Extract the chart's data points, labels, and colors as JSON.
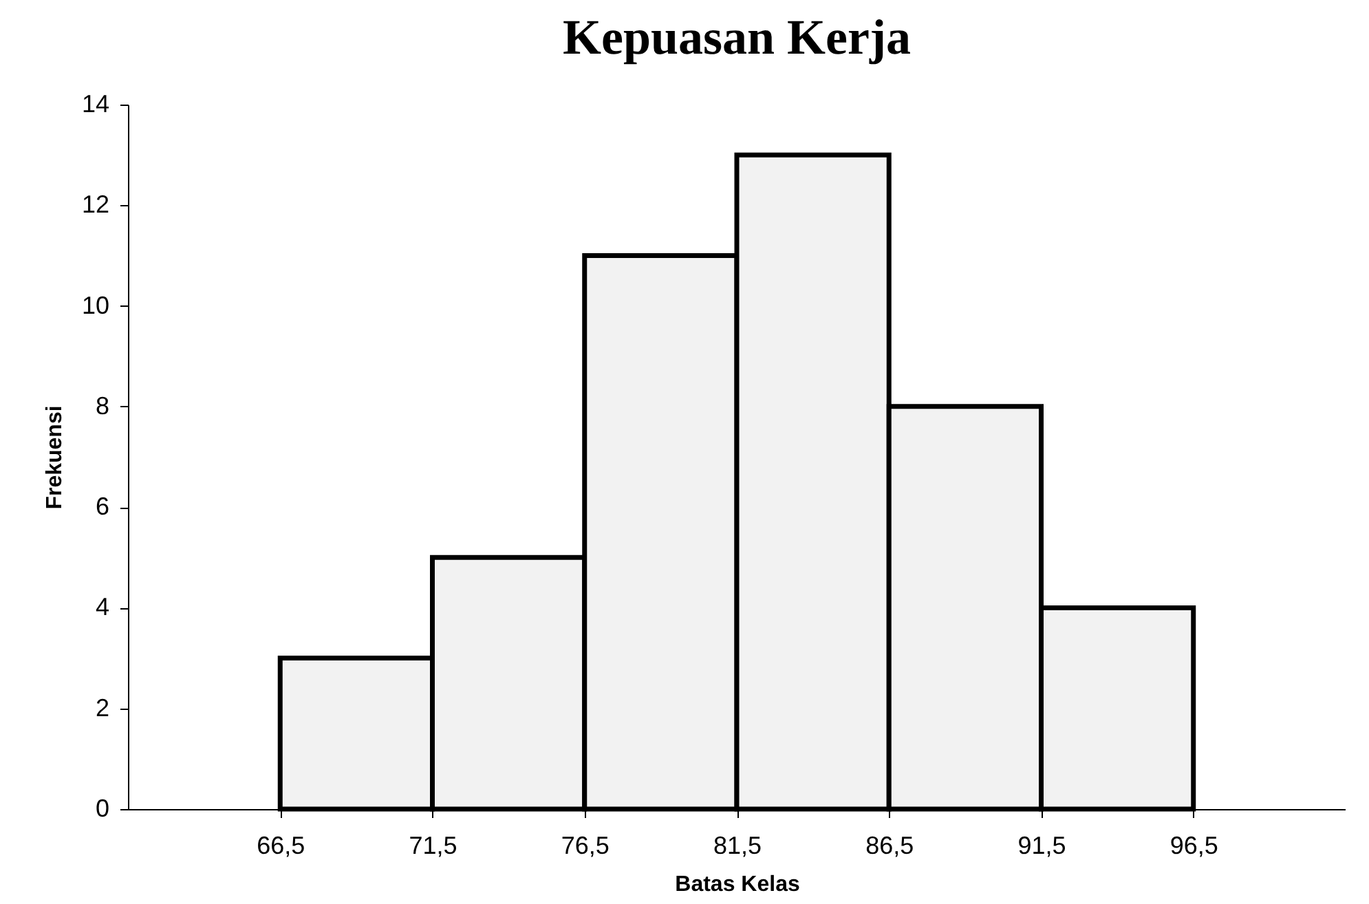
{
  "chart_data": {
    "type": "histogram",
    "title": "Kepuasan Kerja",
    "xlabel": "Batas Kelas",
    "ylabel": "Frekuensi",
    "bins": [
      66.5,
      71.5,
      76.5,
      81.5,
      86.5,
      91.5,
      96.5
    ],
    "values": [
      3,
      5,
      11,
      13,
      8,
      4
    ],
    "color": "#f2f2f2",
    "xlim": [
      61.5,
      101.5
    ],
    "xticks": [
      {
        "value": 66.5,
        "label": "66,5"
      },
      {
        "value": 71.5,
        "label": "71,5"
      },
      {
        "value": 76.5,
        "label": "76,5"
      },
      {
        "value": 81.5,
        "label": "81,5"
      },
      {
        "value": 86.5,
        "label": "86,5"
      },
      {
        "value": 91.5,
        "label": "91,5"
      },
      {
        "value": 96.5,
        "label": "96,5"
      }
    ],
    "ylim": [
      0,
      14
    ],
    "yticks": [
      0,
      2,
      4,
      6,
      8,
      10,
      12,
      14
    ],
    "grid": false
  }
}
